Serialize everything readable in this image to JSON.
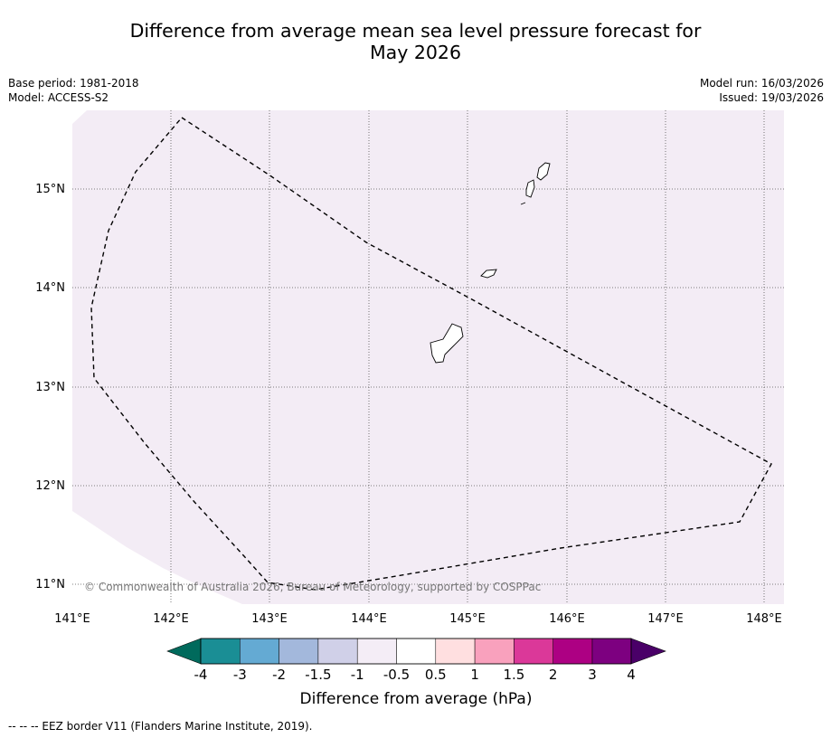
{
  "title_line1": "Difference from average mean sea level pressure forecast for",
  "title_line2": "May 2026",
  "meta_left": {
    "base_period": "Base period: 1981-2018",
    "model": "Model: ACCESS-S2"
  },
  "meta_right": {
    "model_run": "Model run: 16/03/2026",
    "issued": "Issued: 19/03/2026"
  },
  "map": {
    "copyright": "© Commonwealth of Australia 2026, Bureau of Meteorology, supported by COSPPac",
    "lon_labels": [
      "141°E",
      "142°E",
      "143°E",
      "144°E",
      "145°E",
      "146°E",
      "147°E",
      "148°E"
    ],
    "lat_labels": [
      "15°N",
      "14°N",
      "13°N",
      "12°N",
      "11°N"
    ],
    "anomaly_fill_color": "#f3ecf5",
    "anomaly_class": "-0.5 to 0.5"
  },
  "colorbar": {
    "tick_labels": [
      "-4",
      "-3",
      "-2",
      "-1.5",
      "-1",
      "-0.5",
      "0.5",
      "1",
      "1.5",
      "2",
      "3",
      "4"
    ],
    "colors": [
      "#006a5c",
      "#1a8e95",
      "#64aad3",
      "#a3b8dc",
      "#d0d0e8",
      "#f4edf6",
      "#ffffff",
      "#ffdfe0",
      "#f9a1bd",
      "#db3899",
      "#ad0083",
      "#7d0080",
      "#4a0068"
    ],
    "label": "Difference from average (hPa)"
  },
  "footer": "-- -- -- EEZ border V11 (Flanders Marine Institute, 2019)."
}
